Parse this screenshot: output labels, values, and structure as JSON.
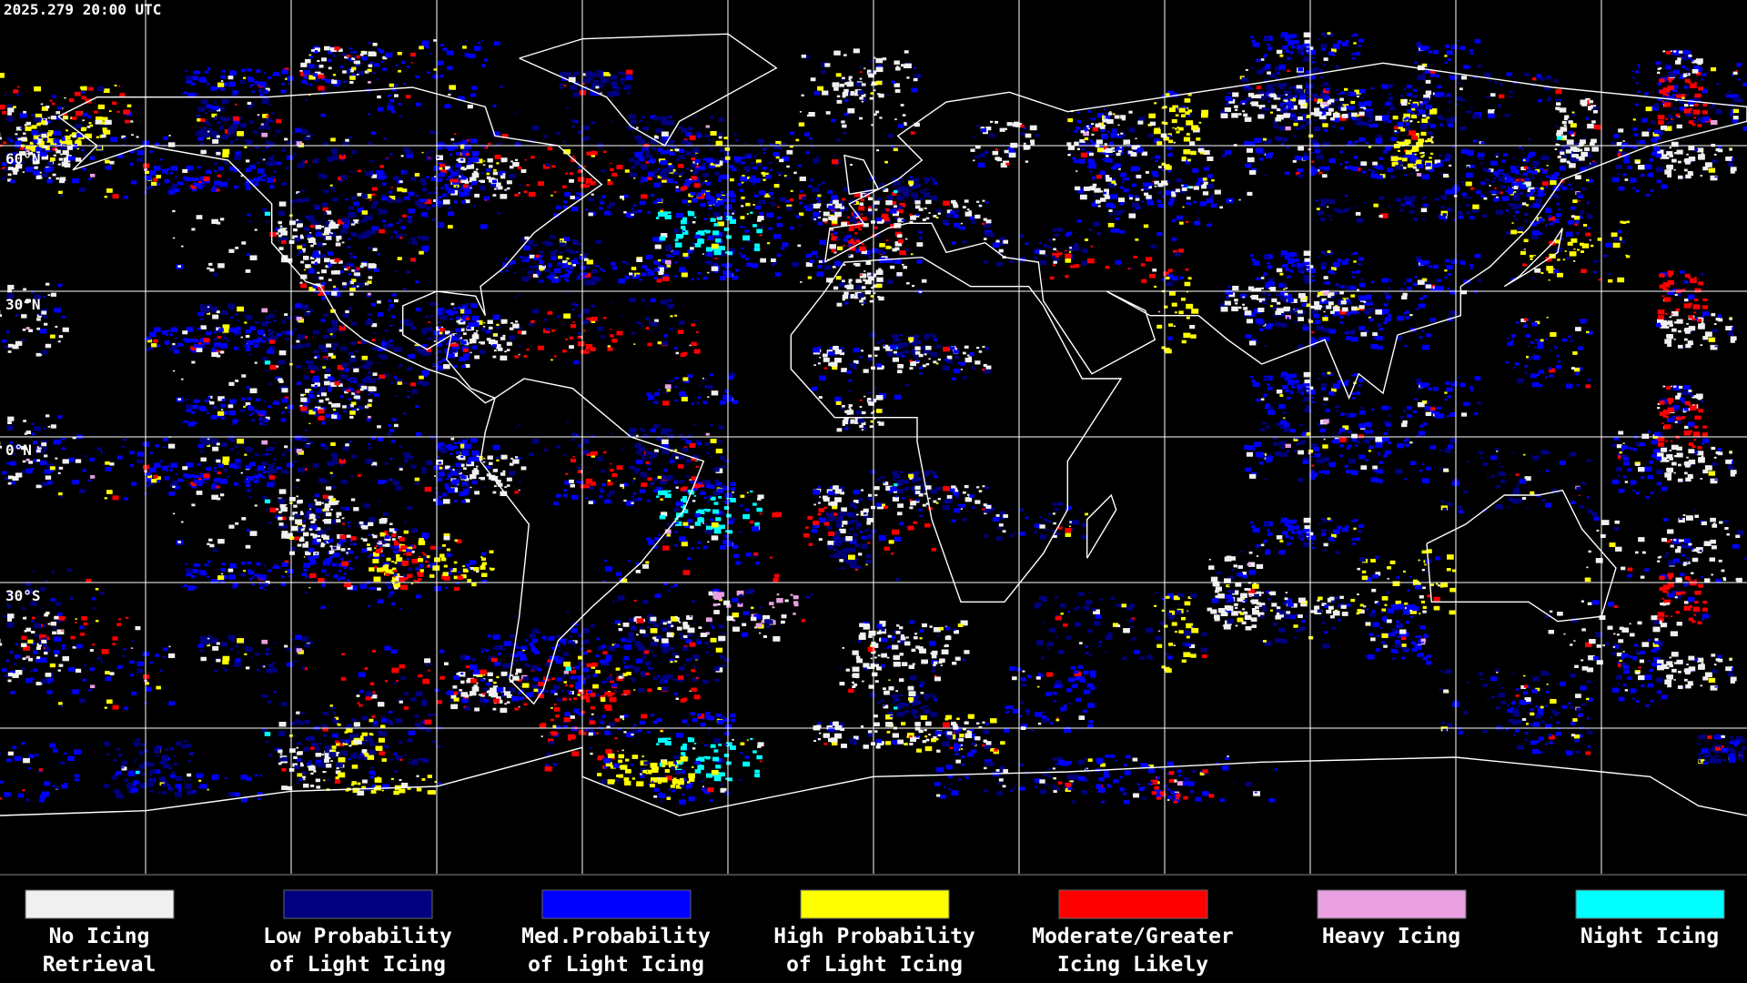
{
  "timestamp": "2025.279 20:00 UTC",
  "latitude_labels": [
    "60°N",
    "30°N",
    "0°N",
    "30°S"
  ],
  "legend": [
    {
      "label_line1": "No Icing",
      "label_line2": "Retrieval",
      "color": "#f0f0f0"
    },
    {
      "label_line1": "Low Probability",
      "label_line2": "of Light Icing",
      "color": "#000080"
    },
    {
      "label_line1": "Med.Probability",
      "label_line2": "of Light Icing",
      "color": "#0000ff"
    },
    {
      "label_line1": "High Probability",
      "label_line2": "of Light Icing",
      "color": "#ffff00"
    },
    {
      "label_line1": "Moderate/Greater",
      "label_line2": "Icing Likely",
      "color": "#ff0000"
    },
    {
      "label_line1": "Heavy Icing",
      "label_line2": "",
      "color": "#e8a0e0"
    },
    {
      "label_line1": "Night Icing",
      "label_line2": "",
      "color": "#00ffff"
    }
  ]
}
